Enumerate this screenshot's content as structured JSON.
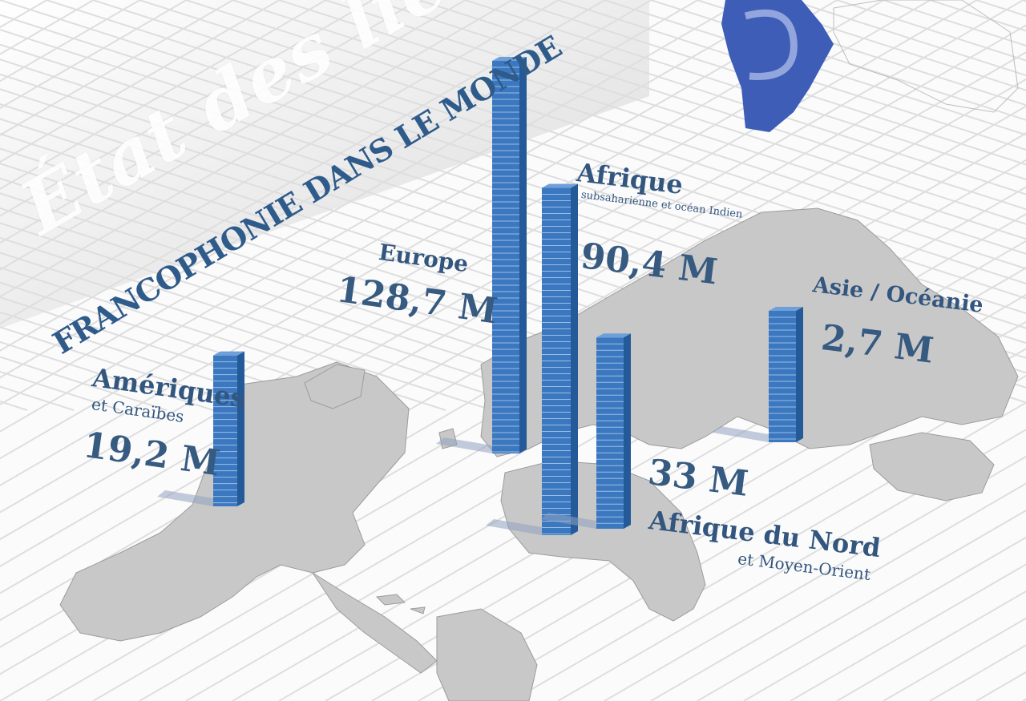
{
  "title": "État des lieux",
  "subtitle": "FRANCOPHONIE DANS LE MONDE",
  "colors": {
    "bar": "#3b78c0",
    "bar_dark": "#245a98",
    "text": "#33567f",
    "land": "#c8c8c8",
    "africa_highlight": "#3d5db7"
  },
  "chart_data": {
    "type": "bar",
    "title": "État des lieux — Francophonie dans le monde",
    "unit": "M",
    "categories": [
      "Amériques et Caraïbes",
      "Europe",
      "Afrique subsaharienne et océan Indien",
      "Afrique du Nord et Moyen-Orient",
      "Asie / Océanie"
    ],
    "values": [
      19.2,
      128.7,
      90.4,
      33,
      2.7
    ],
    "value_labels": [
      "19,2 M",
      "128,7 M",
      "90,4 M",
      "33 M",
      "2,7 M"
    ]
  },
  "regions": {
    "ameriques": {
      "name": "Amériques",
      "sub": "et Caraïbes"
    },
    "europe": {
      "name": "Europe"
    },
    "afrique": {
      "name": "Afrique",
      "sub": "subsaharienne et océan Indien"
    },
    "afrique_nord": {
      "name": "Afrique du Nord",
      "sub": "et Moyen-Orient"
    },
    "asie": {
      "name": "Asie / Océanie"
    }
  }
}
